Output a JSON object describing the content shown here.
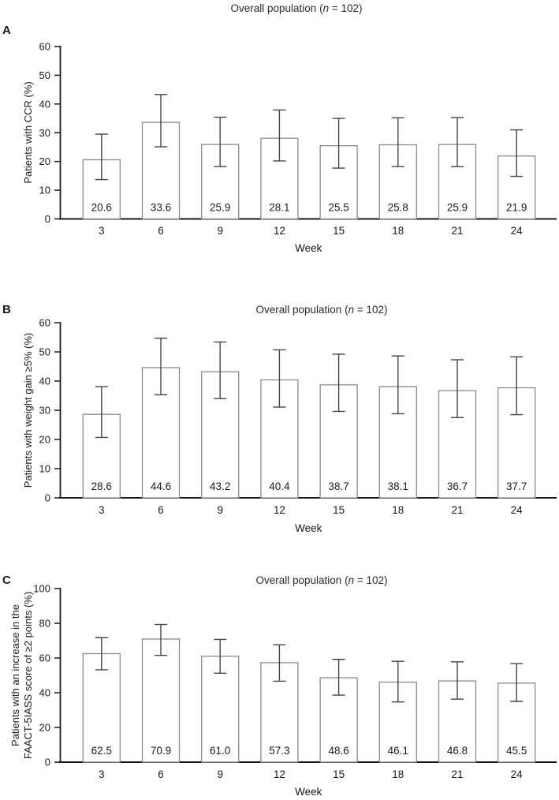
{
  "figure": {
    "background": "#ffffff",
    "axis_color": "#1a1a1a",
    "bar_fill": "#ffffff",
    "bar_stroke": "#8a8a8a",
    "error_color": "#454545",
    "text_color": "#1a1a1a"
  },
  "chart_data": [
    {
      "type": "bar",
      "panel": "A",
      "title": "Overall population (n = 102)",
      "title_parts": {
        "pre": "Overall population (",
        "italic": "n",
        "post": " = 102)"
      },
      "ylabel_lines": [
        "Patients with CCR (%)"
      ],
      "xlabel": "Week",
      "categories": [
        "3",
        "6",
        "9",
        "12",
        "15",
        "18",
        "21",
        "24"
      ],
      "values": [
        20.6,
        33.6,
        25.9,
        28.1,
        25.5,
        25.8,
        25.9,
        21.9
      ],
      "bar_labels": [
        "20.6",
        "33.6",
        "25.9",
        "28.1",
        "25.5",
        "25.8",
        "25.9",
        "21.9"
      ],
      "error_low": [
        13.7,
        25.1,
        18.2,
        20.2,
        17.7,
        18.2,
        18.2,
        14.8
      ],
      "error_high": [
        29.5,
        43.3,
        35.4,
        37.9,
        35.0,
        35.2,
        35.3,
        31.0
      ],
      "ylim": [
        0,
        60
      ],
      "ytick_step": 10,
      "grid": false,
      "legend": null
    },
    {
      "type": "bar",
      "panel": "B",
      "title": "Overall population (n = 102)",
      "title_parts": {
        "pre": "Overall population (",
        "italic": "n",
        "post": " = 102)"
      },
      "ylabel_lines": [
        "Patients with weight gain ≥5% (%)"
      ],
      "xlabel": "Week",
      "categories": [
        "3",
        "6",
        "9",
        "12",
        "15",
        "18",
        "21",
        "24"
      ],
      "values": [
        28.6,
        44.6,
        43.2,
        40.4,
        38.7,
        38.1,
        36.7,
        37.7
      ],
      "bar_labels": [
        "28.6",
        "44.6",
        "43.2",
        "40.4",
        "38.7",
        "38.1",
        "36.7",
        "37.7"
      ],
      "error_low": [
        20.7,
        35.3,
        34.0,
        31.1,
        29.6,
        28.8,
        27.5,
        28.5
      ],
      "error_high": [
        38.1,
        54.7,
        53.4,
        50.7,
        49.2,
        48.6,
        47.3,
        48.3
      ],
      "ylim": [
        0,
        60
      ],
      "ytick_step": 10,
      "grid": false,
      "legend": null
    },
    {
      "type": "bar",
      "panel": "C",
      "title": "Overall population (n = 102)",
      "title_parts": {
        "pre": "Overall population (",
        "italic": "n",
        "post": " = 102)"
      },
      "ylabel_lines": [
        "Patients with an increase in the",
        "FAACT-5IASS score of ≥2 points (%)"
      ],
      "xlabel": "Week",
      "categories": [
        "3",
        "6",
        "9",
        "12",
        "15",
        "18",
        "21",
        "24"
      ],
      "values": [
        62.5,
        70.9,
        61.0,
        57.3,
        48.6,
        46.1,
        46.8,
        45.5
      ],
      "bar_labels": [
        "62.5",
        "70.9",
        "61.0",
        "57.3",
        "48.6",
        "46.1",
        "46.8",
        "45.5"
      ],
      "error_low": [
        53.2,
        61.5,
        51.2,
        46.6,
        38.6,
        34.7,
        36.3,
        35.0
      ],
      "error_high": [
        71.7,
        79.3,
        70.7,
        67.6,
        59.2,
        58.1,
        57.8,
        56.8
      ],
      "ylim": [
        0,
        100
      ],
      "ytick_step": 20,
      "grid": false,
      "legend": null
    }
  ]
}
